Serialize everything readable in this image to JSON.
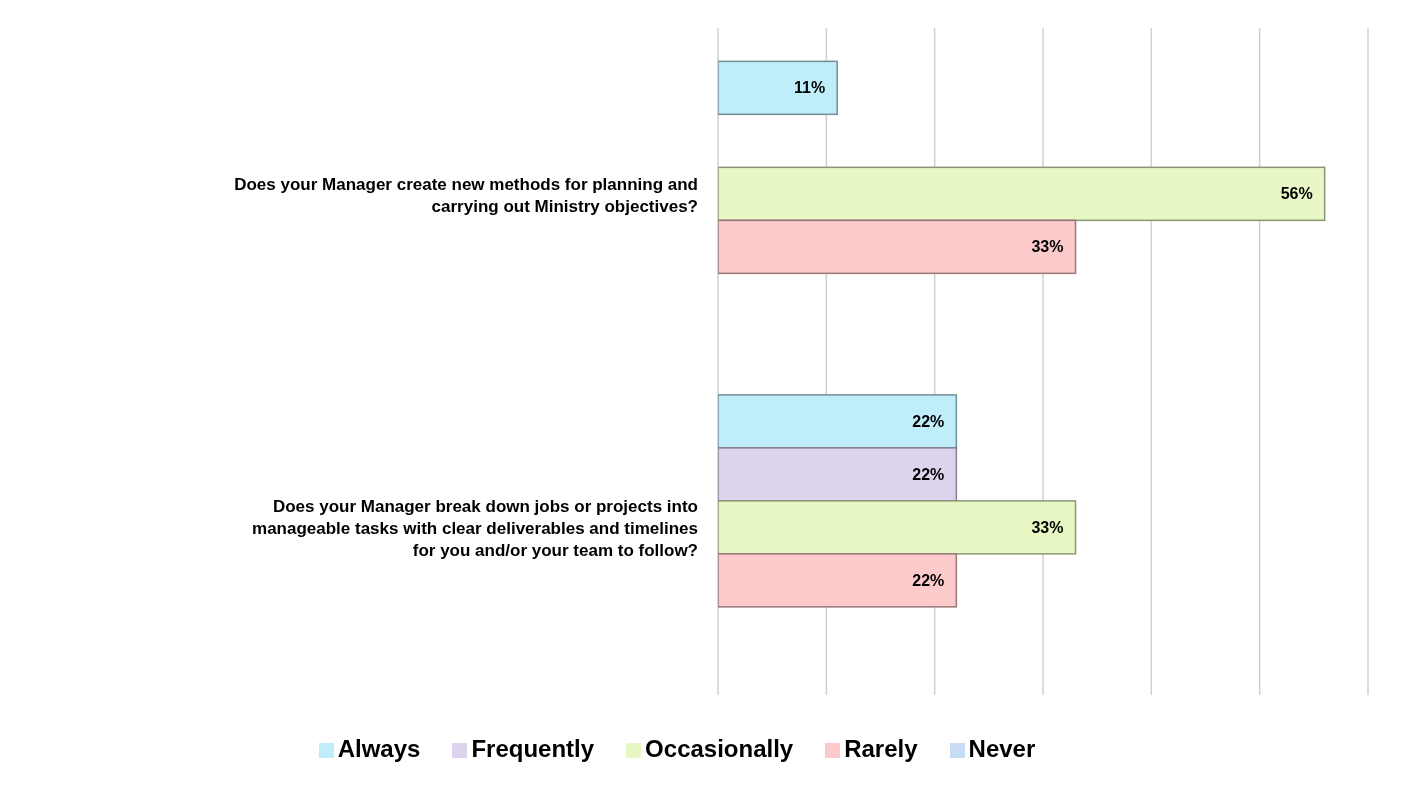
{
  "chart_data": {
    "type": "bar",
    "orientation": "horizontal",
    "categories": [
      "Does your Manager create new methods for planning and carrying out Ministry objectives?",
      "Does your Manager break down jobs or projects into manageable tasks with clear deliverables and timelines for you and/or your team to follow?"
    ],
    "series": [
      {
        "name": "Always",
        "color": "#bfeefa",
        "values": [
          11,
          22
        ],
        "value_labels": [
          "11%",
          "22%"
        ]
      },
      {
        "name": "Frequently",
        "color": "#ddd3ec",
        "values": [
          null,
          22
        ],
        "value_labels": [
          null,
          "22%"
        ]
      },
      {
        "name": "Occasionally",
        "color": "#e8f8c4",
        "values": [
          56,
          33
        ],
        "value_labels": [
          "56%",
          "33%"
        ]
      },
      {
        "name": "Rarely",
        "color": "#fccaca",
        "values": [
          33,
          22
        ],
        "value_labels": [
          "33%",
          "22%"
        ]
      },
      {
        "name": "Never",
        "color": "#c8dcf4",
        "values": [
          null,
          null
        ],
        "value_labels": [
          null,
          null
        ]
      }
    ],
    "xlim": [
      0,
      60
    ],
    "xticks": [
      {
        "value": 0,
        "label": null
      },
      {
        "value": 10,
        "label": null
      },
      {
        "value": 20,
        "label": null
      },
      {
        "value": 30,
        "label": null
      },
      {
        "value": 40,
        "label": null
      },
      {
        "value": 50,
        "label": null
      },
      {
        "value": 60,
        "label": null
      }
    ],
    "grid": "x",
    "legend": "bottom",
    "tick_labels": "y"
  }
}
